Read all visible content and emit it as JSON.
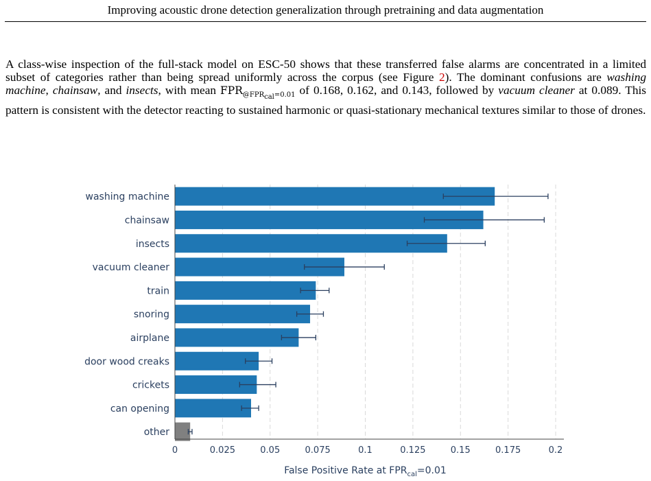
{
  "header": {
    "running_title": "Improving acoustic drone detection generalization through pretraining and data augmentation"
  },
  "paragraph": {
    "text_1": "A class-wise inspection of the full-stack model on ESC-50 shows that these transferred false alarms are concentrated in a limited subset of categories rather than being spread uniformly across the corpus (see Figure ",
    "figure_ref": "2",
    "text_2": ").  The dominant confusions are ",
    "cat_1": "washing machine",
    "sep_1": ", ",
    "cat_2": "chainsaw",
    "sep_2": ", and ",
    "cat_3": "insects",
    "text_3": ", with mean ",
    "metric_main": "FPR",
    "metric_sub": "@FPR",
    "metric_subsub": "cal",
    "metric_eq": "=0.01",
    "text_4": " of 0.168, 0.162, and 0.143, followed by ",
    "cat_4": "vacuum cleaner",
    "text_5": " at 0.089.  This pattern is consistent with the detector reacting to sustained harmonic or quasi-stationary mechanical textures similar to those of drones."
  },
  "chart_data": {
    "type": "bar",
    "orientation": "horizontal",
    "categories": [
      "washing machine",
      "chainsaw",
      "insects",
      "vacuum cleaner",
      "train",
      "snoring",
      "airplane",
      "door wood creaks",
      "crickets",
      "can opening",
      "other"
    ],
    "values": [
      0.168,
      0.162,
      0.143,
      0.089,
      0.074,
      0.071,
      0.065,
      0.044,
      0.043,
      0.04,
      0.008
    ],
    "error_low": [
      0.141,
      0.131,
      0.122,
      0.068,
      0.066,
      0.064,
      0.056,
      0.037,
      0.034,
      0.035,
      0.007
    ],
    "error_high": [
      0.196,
      0.194,
      0.163,
      0.11,
      0.081,
      0.078,
      0.074,
      0.051,
      0.053,
      0.044,
      0.009
    ],
    "highlight_color": "#1f77b4",
    "other_color": "#808080",
    "error_bar_color": "#2a3f5f",
    "xlim": [
      0,
      0.2
    ],
    "xticks": [
      "0",
      "0.025",
      "0.05",
      "0.075",
      "0.1",
      "0.125",
      "0.15",
      "0.175",
      "0.2"
    ],
    "xlabel_main": "False Positive Rate at FPR",
    "xlabel_sub": "cal",
    "xlabel_tail": "=0.01",
    "grid": "vertical dashed"
  }
}
